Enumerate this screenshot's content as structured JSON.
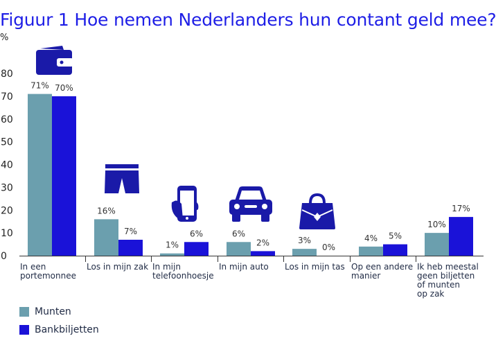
{
  "title": "Figuur 1  Hoe nemen Nederlanders hun contant geld mee?",
  "unit_label": "%",
  "colors": {
    "munten": "#6b9fae",
    "bankbiljetten": "#1a12d8",
    "icon": "#1a1aa8"
  },
  "chart_data": {
    "type": "bar",
    "ylim": [
      0,
      80
    ],
    "yticks": [
      0,
      10,
      20,
      30,
      40,
      50,
      60,
      70,
      80
    ],
    "grid": false,
    "legend": "bottom-left",
    "categories": [
      [
        "In een",
        "portemonnee"
      ],
      [
        "Los in mijn zak"
      ],
      [
        "In mijn",
        "telefoonhoesje"
      ],
      [
        "In mijn auto"
      ],
      [
        "Los in mijn tas"
      ],
      [
        "Op een andere",
        "manier"
      ],
      [
        "Ik heb meestal",
        "geen biljetten",
        "of munten",
        "op zak"
      ]
    ],
    "icons": [
      "wallet-icon",
      "shorts-icon",
      "phone-hand-icon",
      "car-icon",
      "bag-icon",
      "",
      ""
    ],
    "series": [
      {
        "name": "Munten",
        "values": [
          71,
          16,
          1,
          6,
          3,
          4,
          10
        ],
        "labels": [
          "71%",
          "16%",
          "1%",
          "6%",
          "3%",
          "4%",
          "10%"
        ]
      },
      {
        "name": "Bankbiljetten",
        "values": [
          70,
          7,
          6,
          2,
          0,
          5,
          17
        ],
        "labels": [
          "70%",
          "7%",
          "6%",
          "2%",
          "0%",
          "5%",
          "17%"
        ]
      }
    ]
  }
}
